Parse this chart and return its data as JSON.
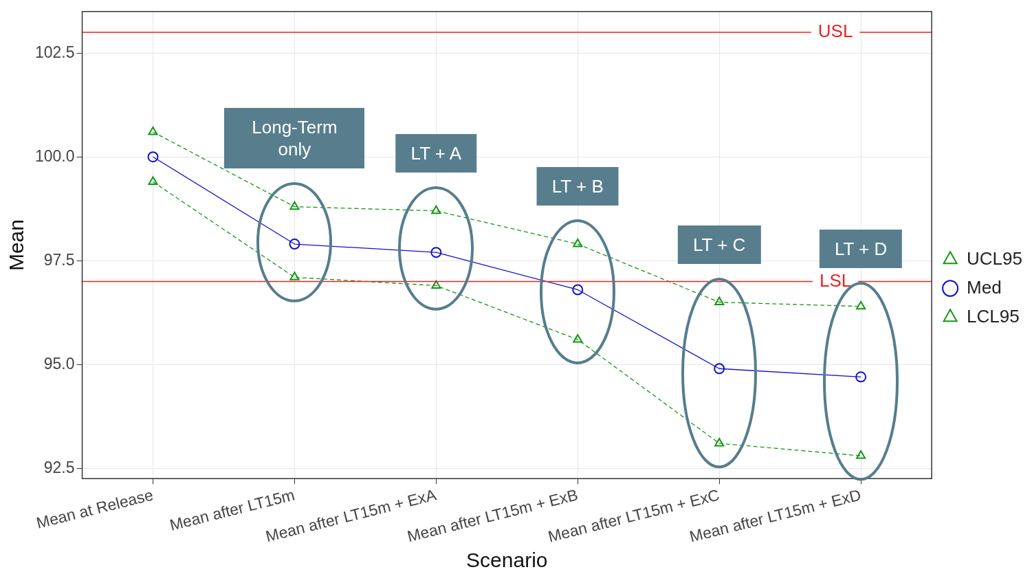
{
  "chart_data": {
    "type": "line",
    "xlabel": "Scenario",
    "ylabel": "Mean",
    "categories": [
      "Mean at Release",
      "Mean after LT15m",
      "Mean after LT15m + ExA",
      "Mean after LT15m + ExB",
      "Mean after LT15m + ExC",
      "Mean after LT15m + ExD"
    ],
    "series": [
      {
        "name": "UCL95",
        "color": "#119911",
        "values": [
          100.6,
          98.8,
          98.7,
          97.9,
          96.5,
          96.4
        ],
        "marker": "triangle",
        "line_style": "dashed"
      },
      {
        "name": "Med",
        "color": "#1010cc",
        "values": [
          100.0,
          97.9,
          97.7,
          96.8,
          94.9,
          94.7
        ],
        "marker": "circle",
        "line_style": "solid"
      },
      {
        "name": "LCL95",
        "color": "#119911",
        "values": [
          99.4,
          97.1,
          96.9,
          95.6,
          93.1,
          92.8
        ],
        "marker": "triangle",
        "line_style": "dashed"
      }
    ],
    "ylim": [
      92.25,
      103.5
    ],
    "yticks": [
      92.5,
      {
        "value": 95,
        "label": "95.0"
      },
      97.5,
      {
        "value": 100,
        "label": "100.0"
      },
      102.5
    ],
    "grid": true,
    "legend": "right",
    "ref_lines": [
      {
        "axis": "y",
        "value": 103,
        "label": "USL",
        "color": "#ee2222"
      },
      {
        "axis": "y",
        "value": 97,
        "label": "LSL",
        "color": "#ee2222"
      }
    ],
    "annotations": [
      "Long-Term only",
      "LT + A",
      "LT + B",
      "LT + C",
      "LT + D"
    ]
  }
}
